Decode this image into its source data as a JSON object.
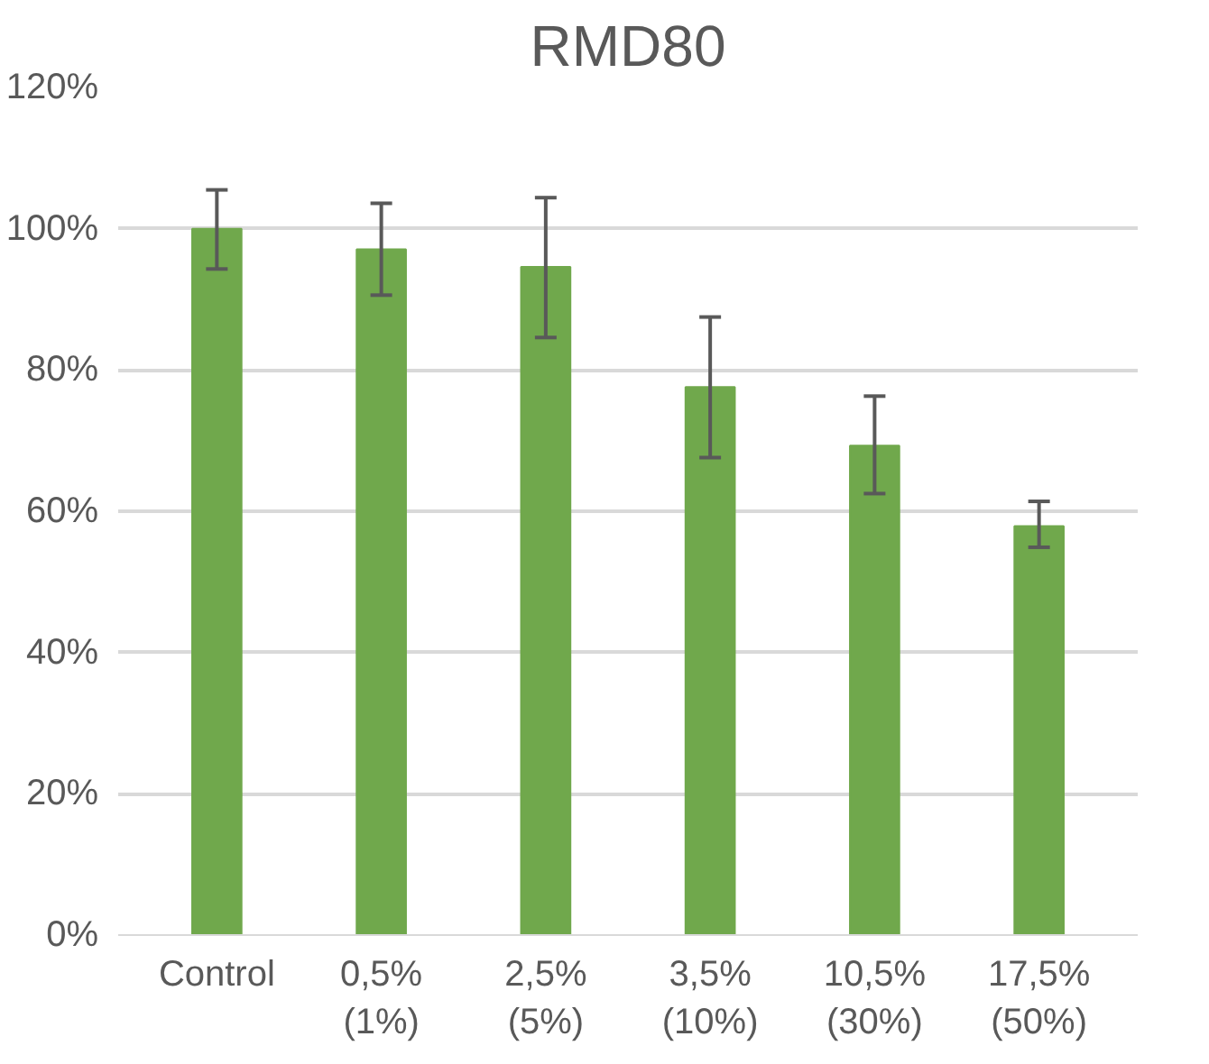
{
  "chart_data": {
    "type": "bar",
    "title": "RMD80",
    "categories": [
      "Control",
      "0,5%\n(1%)",
      "2,5%\n(5%)",
      "3,5%\n(10%)",
      "10,5%\n(30%)",
      "17,5%\n(50%)"
    ],
    "values": [
      100,
      97.1,
      94.6,
      77.6,
      69.3,
      57.9
    ],
    "errors": [
      [
        94.3,
        105.5
      ],
      [
        90.6,
        103.6
      ],
      [
        84.6,
        104.4
      ],
      [
        67.6,
        87.5
      ],
      [
        62.5,
        76.3
      ],
      [
        54.9,
        61.4
      ]
    ],
    "color": "#70a84c",
    "ylim": [
      0,
      120
    ],
    "yticks": [
      {
        "value": 0,
        "label": "0%"
      },
      {
        "value": 20,
        "label": "20%"
      },
      {
        "value": 40,
        "label": "40%"
      },
      {
        "value": 60,
        "label": "60%"
      },
      {
        "value": 80,
        "label": "80%"
      },
      {
        "value": 100,
        "label": "100%"
      },
      {
        "value": 120,
        "label": "120%"
      }
    ],
    "grid": "y"
  }
}
